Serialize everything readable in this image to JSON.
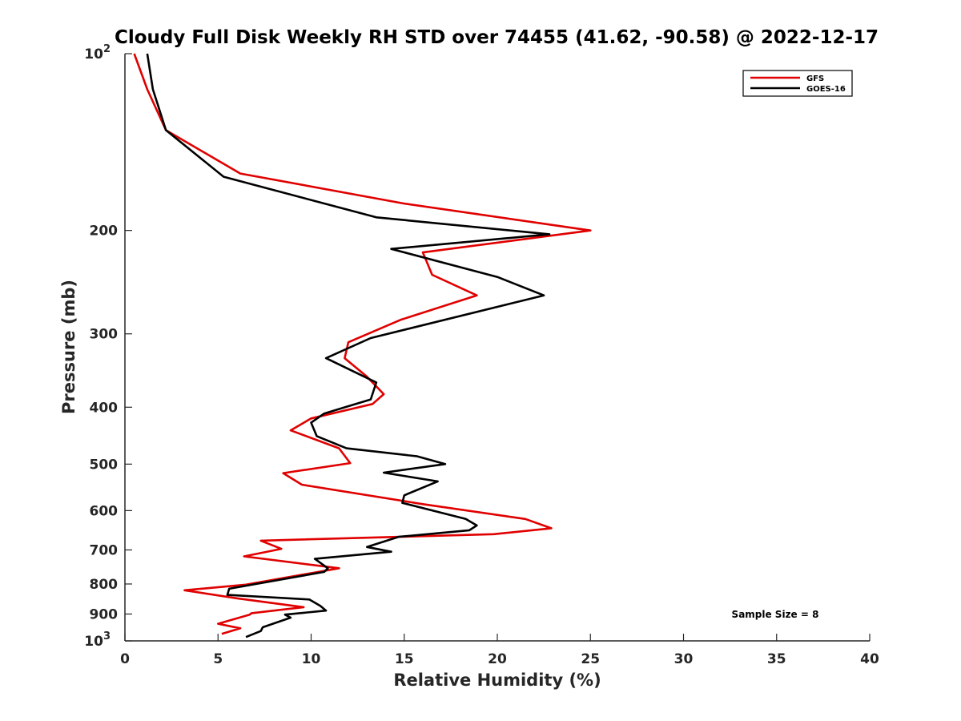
{
  "chart_data": {
    "type": "line",
    "title": "Cloudy Full Disk Weekly RH STD over 74455 (41.62, -90.58) @ 2022-12-17",
    "xlabel": "Relative Humidity (%)",
    "ylabel": "Pressure (mb)",
    "xlim": [
      0,
      40
    ],
    "ylim": [
      100,
      1000
    ],
    "y_scale": "log",
    "y_reversed": true,
    "grid": false,
    "legend_position": "top-right",
    "x_ticks": [
      "0",
      "5",
      "10",
      "15",
      "20",
      "25",
      "30",
      "35",
      "40"
    ],
    "y_ticks": [
      {
        "value": 100,
        "label": "10",
        "sup": "2"
      },
      {
        "value": 200,
        "label": "200",
        "sup": ""
      },
      {
        "value": 300,
        "label": "300",
        "sup": ""
      },
      {
        "value": 400,
        "label": "400",
        "sup": ""
      },
      {
        "value": 500,
        "label": "500",
        "sup": ""
      },
      {
        "value": 600,
        "label": "600",
        "sup": ""
      },
      {
        "value": 700,
        "label": "700",
        "sup": ""
      },
      {
        "value": 800,
        "label": "800",
        "sup": ""
      },
      {
        "value": 900,
        "label": "900",
        "sup": ""
      },
      {
        "value": 1000,
        "label": "10",
        "sup": "3"
      }
    ],
    "series": [
      {
        "name": "GFS",
        "color": "#e00000",
        "points": [
          [
            0.5,
            100
          ],
          [
            1.2,
            115
          ],
          [
            2.2,
            135
          ],
          [
            6.2,
            160
          ],
          [
            15.0,
            180
          ],
          [
            25.0,
            200
          ],
          [
            16.0,
            218
          ],
          [
            16.5,
            238
          ],
          [
            18.9,
            258
          ],
          [
            14.8,
            284
          ],
          [
            12.0,
            310
          ],
          [
            11.8,
            330
          ],
          [
            13.0,
            355
          ],
          [
            13.9,
            380
          ],
          [
            13.3,
            395
          ],
          [
            10.0,
            418
          ],
          [
            8.9,
            438
          ],
          [
            11.5,
            470
          ],
          [
            12.1,
            498
          ],
          [
            8.5,
            518
          ],
          [
            9.5,
            542
          ],
          [
            16.0,
            585
          ],
          [
            21.5,
            620
          ],
          [
            22.9,
            643
          ],
          [
            19.8,
            658
          ],
          [
            7.3,
            675
          ],
          [
            8.4,
            697
          ],
          [
            6.4,
            718
          ],
          [
            11.5,
            752
          ],
          [
            6.5,
            802
          ],
          [
            3.2,
            820
          ],
          [
            6.0,
            846
          ],
          [
            9.6,
            876
          ],
          [
            6.8,
            897
          ],
          [
            6.7,
            902
          ],
          [
            5.0,
            935
          ],
          [
            6.2,
            952
          ],
          [
            5.2,
            973
          ]
        ]
      },
      {
        "name": "GOES-16",
        "color": "#000000",
        "points": [
          [
            1.2,
            100
          ],
          [
            1.5,
            115
          ],
          [
            2.2,
            135
          ],
          [
            5.3,
            162
          ],
          [
            13.5,
            190
          ],
          [
            22.8,
            203
          ],
          [
            14.3,
            215
          ],
          [
            20.0,
            240
          ],
          [
            22.5,
            258
          ],
          [
            13.2,
            305
          ],
          [
            10.8,
            330
          ],
          [
            13.5,
            363
          ],
          [
            13.2,
            388
          ],
          [
            10.7,
            410
          ],
          [
            10.0,
            425
          ],
          [
            10.3,
            448
          ],
          [
            11.9,
            470
          ],
          [
            15.7,
            485
          ],
          [
            17.2,
            500
          ],
          [
            13.9,
            517
          ],
          [
            16.8,
            535
          ],
          [
            15.0,
            565
          ],
          [
            14.9,
            582
          ],
          [
            18.3,
            620
          ],
          [
            18.9,
            636
          ],
          [
            18.5,
            648
          ],
          [
            14.7,
            665
          ],
          [
            13.0,
            692
          ],
          [
            14.3,
            705
          ],
          [
            10.2,
            725
          ],
          [
            10.9,
            752
          ],
          [
            10.7,
            763
          ],
          [
            5.6,
            815
          ],
          [
            5.5,
            835
          ],
          [
            9.9,
            850
          ],
          [
            10.5,
            872
          ],
          [
            10.8,
            888
          ],
          [
            8.6,
            902
          ],
          [
            8.9,
            913
          ],
          [
            7.4,
            948
          ],
          [
            7.3,
            962
          ],
          [
            6.5,
            985
          ]
        ]
      }
    ],
    "annotations": [
      {
        "text": "Sample Size = 8",
        "x": 35,
        "y": 900
      }
    ]
  }
}
